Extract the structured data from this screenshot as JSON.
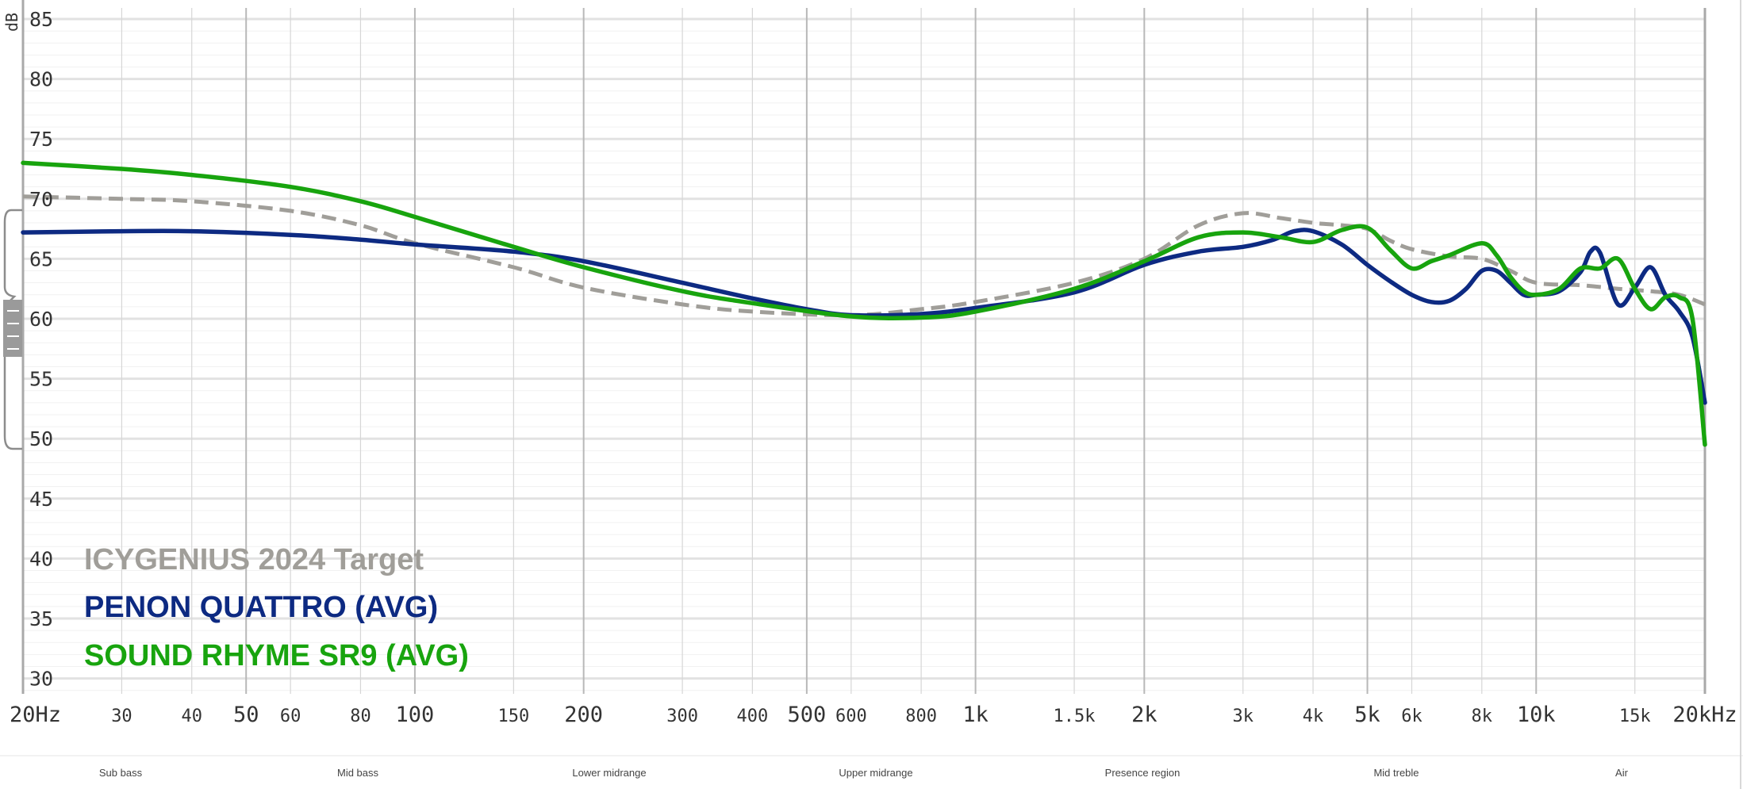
{
  "chart_data": {
    "type": "line",
    "title": "",
    "xlabel": "",
    "ylabel": "dB",
    "xscale": "log",
    "xlim": [
      20,
      20000
    ],
    "ylim": [
      28,
      86
    ],
    "y_ticks": [
      "85",
      "80",
      "75",
      "70",
      "65",
      "60",
      "55",
      "50",
      "45",
      "40",
      "35",
      "30"
    ],
    "x_ticks": [
      {
        "f": 20,
        "label": "20Hz",
        "major": true
      },
      {
        "f": 30,
        "label": "30",
        "major": false
      },
      {
        "f": 40,
        "label": "40",
        "major": false
      },
      {
        "f": 50,
        "label": "50",
        "major": true
      },
      {
        "f": 60,
        "label": "60",
        "major": false
      },
      {
        "f": 80,
        "label": "80",
        "major": false
      },
      {
        "f": 100,
        "label": "100",
        "major": true
      },
      {
        "f": 150,
        "label": "150",
        "major": false
      },
      {
        "f": 200,
        "label": "200",
        "major": true
      },
      {
        "f": 300,
        "label": "300",
        "major": false
      },
      {
        "f": 400,
        "label": "400",
        "major": false
      },
      {
        "f": 500,
        "label": "500",
        "major": true
      },
      {
        "f": 600,
        "label": "600",
        "major": false
      },
      {
        "f": 800,
        "label": "800",
        "major": false
      },
      {
        "f": 1000,
        "label": "1k",
        "major": true
      },
      {
        "f": 1500,
        "label": "1.5k",
        "major": false
      },
      {
        "f": 2000,
        "label": "2k",
        "major": true
      },
      {
        "f": 3000,
        "label": "3k",
        "major": false
      },
      {
        "f": 4000,
        "label": "4k",
        "major": false
      },
      {
        "f": 5000,
        "label": "5k",
        "major": true
      },
      {
        "f": 6000,
        "label": "6k",
        "major": false
      },
      {
        "f": 8000,
        "label": "8k",
        "major": false
      },
      {
        "f": 10000,
        "label": "10k",
        "major": true
      },
      {
        "f": 15000,
        "label": "15k",
        "major": false
      },
      {
        "f": 20000,
        "label": "20kHz",
        "major": true
      }
    ],
    "series": [
      {
        "name": "ICYGENIUS 2024 Target",
        "color": "#a09e99",
        "dashed": true,
        "points": [
          [
            20,
            70.2
          ],
          [
            30,
            70.0
          ],
          [
            40,
            69.8
          ],
          [
            60,
            69.0
          ],
          [
            80,
            67.8
          ],
          [
            100,
            66.3
          ],
          [
            150,
            64.3
          ],
          [
            200,
            62.6
          ],
          [
            300,
            61.2
          ],
          [
            400,
            60.6
          ],
          [
            600,
            60.3
          ],
          [
            800,
            60.8
          ],
          [
            1000,
            61.4
          ],
          [
            1500,
            63.0
          ],
          [
            2000,
            65.0
          ],
          [
            2500,
            67.8
          ],
          [
            3000,
            68.8
          ],
          [
            3500,
            68.4
          ],
          [
            4000,
            68.0
          ],
          [
            4500,
            67.8
          ],
          [
            5000,
            67.5
          ],
          [
            5500,
            66.5
          ],
          [
            6000,
            65.8
          ],
          [
            7000,
            65.2
          ],
          [
            8000,
            65.0
          ],
          [
            9000,
            64.0
          ],
          [
            10000,
            63.0
          ],
          [
            12000,
            62.8
          ],
          [
            14000,
            62.5
          ],
          [
            16000,
            62.3
          ],
          [
            18000,
            62.0
          ],
          [
            20000,
            61.2
          ]
        ]
      },
      {
        "name": "PENON QUATTRO (AVG)",
        "color": "#0d2a82",
        "dashed": false,
        "points": [
          [
            20,
            67.2
          ],
          [
            30,
            67.3
          ],
          [
            40,
            67.3
          ],
          [
            60,
            67.0
          ],
          [
            80,
            66.6
          ],
          [
            100,
            66.2
          ],
          [
            150,
            65.6
          ],
          [
            200,
            64.8
          ],
          [
            300,
            63.0
          ],
          [
            400,
            61.7
          ],
          [
            500,
            60.8
          ],
          [
            600,
            60.3
          ],
          [
            800,
            60.4
          ],
          [
            1000,
            60.9
          ],
          [
            1500,
            62.2
          ],
          [
            2000,
            64.5
          ],
          [
            2500,
            65.6
          ],
          [
            3000,
            66.0
          ],
          [
            3400,
            66.6
          ],
          [
            3700,
            67.3
          ],
          [
            4000,
            67.3
          ],
          [
            4500,
            66.2
          ],
          [
            5000,
            64.5
          ],
          [
            5500,
            63.1
          ],
          [
            6000,
            62.0
          ],
          [
            6500,
            61.4
          ],
          [
            7000,
            61.5
          ],
          [
            7500,
            62.5
          ],
          [
            8000,
            64.0
          ],
          [
            8500,
            64.0
          ],
          [
            9000,
            63.0
          ],
          [
            9500,
            62.0
          ],
          [
            10000,
            62.0
          ],
          [
            11000,
            62.3
          ],
          [
            12000,
            63.9
          ],
          [
            12500,
            65.6
          ],
          [
            13000,
            65.5
          ],
          [
            14000,
            61.2
          ],
          [
            15000,
            62.6
          ],
          [
            16000,
            64.3
          ],
          [
            17000,
            62.0
          ],
          [
            18000,
            60.6
          ],
          [
            19000,
            58.5
          ],
          [
            20000,
            53.0
          ]
        ]
      },
      {
        "name": "SOUND RHYME SR9 (AVG)",
        "color": "#18a40e",
        "dashed": false,
        "points": [
          [
            20,
            73.0
          ],
          [
            30,
            72.5
          ],
          [
            40,
            72.0
          ],
          [
            60,
            71.0
          ],
          [
            80,
            69.8
          ],
          [
            100,
            68.5
          ],
          [
            150,
            66.0
          ],
          [
            200,
            64.3
          ],
          [
            300,
            62.3
          ],
          [
            400,
            61.3
          ],
          [
            600,
            60.2
          ],
          [
            800,
            60.1
          ],
          [
            1000,
            60.6
          ],
          [
            1500,
            62.5
          ],
          [
            2000,
            64.8
          ],
          [
            2500,
            66.8
          ],
          [
            3000,
            67.2
          ],
          [
            3500,
            66.8
          ],
          [
            4000,
            66.4
          ],
          [
            4500,
            67.4
          ],
          [
            5000,
            67.6
          ],
          [
            5500,
            65.7
          ],
          [
            6000,
            64.2
          ],
          [
            6500,
            64.8
          ],
          [
            7000,
            65.3
          ],
          [
            8000,
            66.3
          ],
          [
            8500,
            65.3
          ],
          [
            9000,
            63.5
          ],
          [
            9500,
            62.3
          ],
          [
            10000,
            62.0
          ],
          [
            11000,
            62.5
          ],
          [
            12000,
            64.2
          ],
          [
            13000,
            64.2
          ],
          [
            14000,
            65.0
          ],
          [
            15000,
            62.5
          ],
          [
            16000,
            60.8
          ],
          [
            17000,
            61.8
          ],
          [
            18000,
            61.8
          ],
          [
            19000,
            60.0
          ],
          [
            20000,
            49.5
          ]
        ]
      }
    ],
    "regions": [
      "Sub bass",
      "Mid bass",
      "Lower midrange",
      "Upper midrange",
      "Presence region",
      "Mid treble",
      "Air"
    ]
  }
}
